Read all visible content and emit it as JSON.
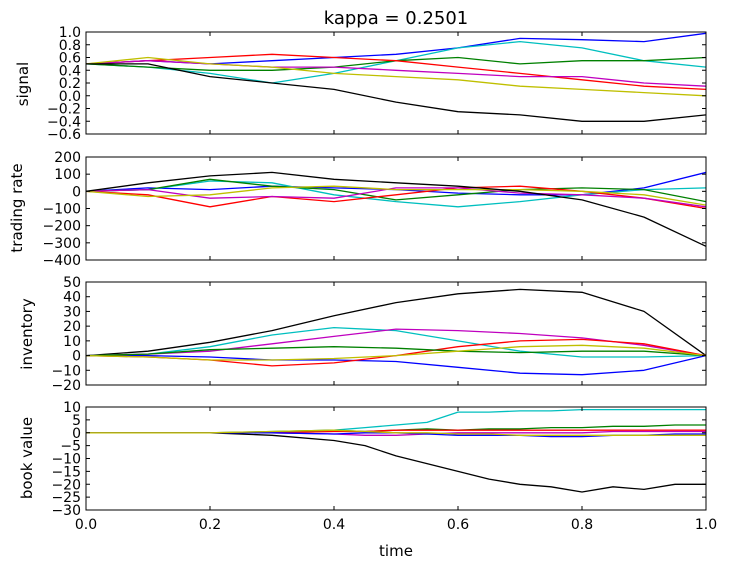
{
  "chart_data": [
    {
      "type": "line",
      "title": "kappa = 0.2501",
      "xlabel": "",
      "ylabel": "signal",
      "xlim": [
        0.0,
        1.0
      ],
      "ylim": [
        -0.6,
        1.0
      ],
      "yticks": [
        "1.0",
        "0.8",
        "0.6",
        "0.4",
        "0.2",
        "0.0",
        "−0.2",
        "−0.4",
        "−0.6"
      ],
      "ytick_values": [
        1.0,
        0.8,
        0.6,
        0.4,
        0.2,
        0.0,
        -0.2,
        -0.4,
        -0.6
      ],
      "grid": false,
      "series": [
        {
          "color": "#0000ff",
          "x": [
            0,
            0.1,
            0.2,
            0.3,
            0.4,
            0.5,
            0.6,
            0.7,
            0.8,
            0.9,
            1.0
          ],
          "y": [
            0.5,
            0.55,
            0.5,
            0.55,
            0.6,
            0.65,
            0.75,
            0.9,
            0.88,
            0.85,
            0.98
          ]
        },
        {
          "color": "#00bfbf",
          "x": [
            0,
            0.1,
            0.2,
            0.3,
            0.4,
            0.5,
            0.6,
            0.7,
            0.8,
            0.9,
            1.0
          ],
          "y": [
            0.5,
            0.45,
            0.35,
            0.2,
            0.35,
            0.55,
            0.75,
            0.85,
            0.75,
            0.55,
            0.45
          ]
        },
        {
          "color": "#008000",
          "x": [
            0,
            0.1,
            0.2,
            0.3,
            0.4,
            0.5,
            0.6,
            0.7,
            0.8,
            0.9,
            1.0
          ],
          "y": [
            0.5,
            0.45,
            0.4,
            0.4,
            0.45,
            0.55,
            0.6,
            0.5,
            0.55,
            0.55,
            0.6
          ]
        },
        {
          "color": "#ff0000",
          "x": [
            0,
            0.1,
            0.2,
            0.3,
            0.4,
            0.5,
            0.6,
            0.7,
            0.8,
            0.9,
            1.0
          ],
          "y": [
            0.5,
            0.55,
            0.6,
            0.65,
            0.6,
            0.55,
            0.45,
            0.35,
            0.25,
            0.15,
            0.1
          ]
        },
        {
          "color": "#bf00bf",
          "x": [
            0,
            0.1,
            0.2,
            0.3,
            0.4,
            0.5,
            0.6,
            0.7,
            0.8,
            0.9,
            1.0
          ],
          "y": [
            0.5,
            0.55,
            0.5,
            0.45,
            0.45,
            0.4,
            0.35,
            0.3,
            0.3,
            0.2,
            0.15
          ]
        },
        {
          "color": "#bfbf00",
          "x": [
            0,
            0.1,
            0.2,
            0.3,
            0.4,
            0.5,
            0.6,
            0.7,
            0.8,
            0.9,
            1.0
          ],
          "y": [
            0.5,
            0.6,
            0.5,
            0.45,
            0.35,
            0.3,
            0.25,
            0.15,
            0.1,
            0.05,
            0.0
          ]
        },
        {
          "color": "#000000",
          "x": [
            0,
            0.1,
            0.2,
            0.3,
            0.4,
            0.5,
            0.6,
            0.7,
            0.8,
            0.9,
            1.0
          ],
          "y": [
            0.5,
            0.5,
            0.3,
            0.2,
            0.1,
            -0.1,
            -0.25,
            -0.3,
            -0.4,
            -0.4,
            -0.3
          ]
        }
      ]
    },
    {
      "type": "line",
      "xlabel": "",
      "ylabel": "trading rate",
      "xlim": [
        0.0,
        1.0
      ],
      "ylim": [
        -400,
        200
      ],
      "yticks": [
        "200",
        "100",
        "0",
        "−100",
        "−200",
        "−300",
        "−400"
      ],
      "ytick_values": [
        200,
        100,
        0,
        -100,
        -200,
        -300,
        -400
      ],
      "grid": false,
      "series": [
        {
          "color": "#0000ff",
          "x": [
            0,
            0.1,
            0.2,
            0.3,
            0.4,
            0.5,
            0.6,
            0.7,
            0.8,
            0.9,
            1.0
          ],
          "y": [
            0,
            20,
            10,
            30,
            20,
            10,
            -10,
            -20,
            -20,
            20,
            110
          ]
        },
        {
          "color": "#00bfbf",
          "x": [
            0,
            0.1,
            0.2,
            0.3,
            0.4,
            0.5,
            0.6,
            0.7,
            0.8,
            0.9,
            1.0
          ],
          "y": [
            0,
            10,
            60,
            50,
            -20,
            -60,
            -90,
            -60,
            -20,
            10,
            20
          ]
        },
        {
          "color": "#008000",
          "x": [
            0,
            0.1,
            0.2,
            0.3,
            0.4,
            0.5,
            0.6,
            0.7,
            0.8,
            0.9,
            1.0
          ],
          "y": [
            0,
            10,
            70,
            30,
            10,
            -50,
            -20,
            10,
            20,
            10,
            -60
          ]
        },
        {
          "color": "#ff0000",
          "x": [
            0,
            0.1,
            0.2,
            0.3,
            0.4,
            0.5,
            0.6,
            0.7,
            0.8,
            0.9,
            1.0
          ],
          "y": [
            0,
            -20,
            -90,
            -30,
            -60,
            -20,
            20,
            30,
            0,
            -40,
            -100
          ]
        },
        {
          "color": "#bf00bf",
          "x": [
            0,
            0.1,
            0.2,
            0.3,
            0.4,
            0.5,
            0.6,
            0.7,
            0.8,
            0.9,
            1.0
          ],
          "y": [
            0,
            10,
            -40,
            -30,
            -40,
            20,
            20,
            -10,
            -20,
            -40,
            -90
          ]
        },
        {
          "color": "#bfbf00",
          "x": [
            0,
            0.1,
            0.2,
            0.3,
            0.4,
            0.5,
            0.6,
            0.7,
            0.8,
            0.9,
            1.0
          ],
          "y": [
            0,
            -30,
            -20,
            20,
            30,
            10,
            10,
            10,
            0,
            -20,
            -80
          ]
        },
        {
          "color": "#000000",
          "x": [
            0,
            0.1,
            0.2,
            0.3,
            0.4,
            0.5,
            0.6,
            0.7,
            0.8,
            0.9,
            1.0
          ],
          "y": [
            0,
            50,
            90,
            110,
            70,
            50,
            30,
            0,
            -50,
            -150,
            -320
          ]
        }
      ]
    },
    {
      "type": "line",
      "xlabel": "",
      "ylabel": "inventory",
      "xlim": [
        0.0,
        1.0
      ],
      "ylim": [
        -20,
        50
      ],
      "yticks": [
        "50",
        "40",
        "30",
        "20",
        "10",
        "0",
        "−10",
        "−20"
      ],
      "ytick_values": [
        50,
        40,
        30,
        20,
        10,
        0,
        -10,
        -20
      ],
      "grid": false,
      "series": [
        {
          "color": "#000000",
          "x": [
            0,
            0.1,
            0.2,
            0.3,
            0.4,
            0.5,
            0.6,
            0.7,
            0.8,
            0.9,
            1.0
          ],
          "y": [
            0,
            3,
            9,
            17,
            27,
            36,
            42,
            45,
            43,
            30,
            0
          ]
        },
        {
          "color": "#00bfbf",
          "x": [
            0,
            0.1,
            0.2,
            0.3,
            0.4,
            0.5,
            0.6,
            0.7,
            0.8,
            0.9,
            1.0
          ],
          "y": [
            0,
            1,
            6,
            14,
            19,
            17,
            10,
            3,
            -1,
            -1,
            0
          ]
        },
        {
          "color": "#bf00bf",
          "x": [
            0,
            0.1,
            0.2,
            0.3,
            0.4,
            0.5,
            0.6,
            0.7,
            0.8,
            0.9,
            1.0
          ],
          "y": [
            0,
            1,
            3,
            8,
            13,
            18,
            17,
            15,
            12,
            7,
            0
          ]
        },
        {
          "color": "#0000ff",
          "x": [
            0,
            0.1,
            0.2,
            0.3,
            0.4,
            0.5,
            0.6,
            0.7,
            0.8,
            0.9,
            1.0
          ],
          "y": [
            0,
            0,
            -1,
            -3,
            -3,
            -4,
            -8,
            -12,
            -13,
            -10,
            0
          ]
        },
        {
          "color": "#ff0000",
          "x": [
            0,
            0.1,
            0.2,
            0.3,
            0.4,
            0.5,
            0.6,
            0.7,
            0.8,
            0.9,
            1.0
          ],
          "y": [
            0,
            -1,
            -3,
            -7,
            -5,
            0,
            6,
            10,
            11,
            8,
            0
          ]
        },
        {
          "color": "#008000",
          "x": [
            0,
            0.1,
            0.2,
            0.3,
            0.4,
            0.5,
            0.6,
            0.7,
            0.8,
            0.9,
            1.0
          ],
          "y": [
            0,
            1,
            4,
            5,
            6,
            5,
            3,
            2,
            3,
            3,
            0
          ]
        },
        {
          "color": "#bfbf00",
          "x": [
            0,
            0.1,
            0.2,
            0.3,
            0.4,
            0.5,
            0.6,
            0.7,
            0.8,
            0.9,
            1.0
          ],
          "y": [
            0,
            -1,
            -3,
            -3,
            -2,
            0,
            3,
            6,
            7,
            5,
            0
          ]
        }
      ]
    },
    {
      "type": "line",
      "xlabel": "time",
      "ylabel": "book value",
      "xlim": [
        0.0,
        1.0
      ],
      "ylim": [
        -30,
        10
      ],
      "yticks": [
        "10",
        "5",
        "0",
        "−5",
        "−10",
        "−15",
        "−20",
        "−25",
        "−30"
      ],
      "ytick_values": [
        10,
        5,
        0,
        -5,
        -10,
        -15,
        -20,
        -25,
        -30
      ],
      "xticks": [
        "0.0",
        "0.2",
        "0.4",
        "0.6",
        "0.8",
        "1.0"
      ],
      "xtick_values": [
        0.0,
        0.2,
        0.4,
        0.6,
        0.8,
        1.0
      ],
      "grid": false,
      "series": [
        {
          "color": "#000000",
          "x": [
            0,
            0.1,
            0.2,
            0.3,
            0.4,
            0.45,
            0.5,
            0.55,
            0.6,
            0.65,
            0.7,
            0.75,
            0.8,
            0.85,
            0.9,
            0.95,
            1.0
          ],
          "y": [
            0,
            0,
            0,
            -1,
            -3,
            -5,
            -9,
            -12,
            -15,
            -18,
            -20,
            -21,
            -23,
            -21,
            -22,
            -20,
            -20
          ]
        },
        {
          "color": "#00bfbf",
          "x": [
            0,
            0.1,
            0.2,
            0.3,
            0.4,
            0.45,
            0.5,
            0.55,
            0.6,
            0.65,
            0.7,
            0.75,
            0.8,
            0.85,
            0.9,
            0.95,
            1.0
          ],
          "y": [
            0,
            0,
            0,
            0,
            1,
            2,
            3,
            4,
            8,
            8,
            8.5,
            8.5,
            9,
            9,
            9,
            9,
            9
          ]
        },
        {
          "color": "#008000",
          "x": [
            0,
            0.1,
            0.2,
            0.3,
            0.4,
            0.45,
            0.5,
            0.55,
            0.6,
            0.65,
            0.7,
            0.75,
            0.8,
            0.85,
            0.9,
            0.95,
            1.0
          ],
          "y": [
            0,
            0,
            0,
            0.5,
            1,
            0.5,
            1,
            1.5,
            1,
            1.5,
            1.5,
            2,
            2,
            2.5,
            2.5,
            3,
            3
          ]
        },
        {
          "color": "#ff0000",
          "x": [
            0,
            0.1,
            0.2,
            0.3,
            0.4,
            0.45,
            0.5,
            0.55,
            0.6,
            0.65,
            0.7,
            0.75,
            0.8,
            0.85,
            0.9,
            0.95,
            1.0
          ],
          "y": [
            0,
            0,
            0,
            0,
            0.5,
            0.5,
            1,
            1,
            1,
            1,
            1,
            1,
            1,
            1,
            1,
            1,
            1
          ]
        },
        {
          "color": "#bf00bf",
          "x": [
            0,
            0.1,
            0.2,
            0.3,
            0.4,
            0.45,
            0.5,
            0.55,
            0.6,
            0.65,
            0.7,
            0.75,
            0.8,
            0.85,
            0.9,
            0.95,
            1.0
          ],
          "y": [
            0,
            0,
            0,
            0,
            -0.5,
            -1,
            -1,
            -0.5,
            0,
            0,
            0,
            0,
            0,
            0.5,
            0.5,
            0.5,
            0.5
          ]
        },
        {
          "color": "#0000ff",
          "x": [
            0,
            0.1,
            0.2,
            0.3,
            0.4,
            0.45,
            0.5,
            0.55,
            0.6,
            0.65,
            0.7,
            0.75,
            0.8,
            0.85,
            0.9,
            0.95,
            1.0
          ],
          "y": [
            0,
            0,
            0,
            0,
            -0.5,
            0,
            0,
            -0.5,
            -1,
            -1,
            -1,
            -1.5,
            -1.5,
            -1,
            -1,
            -0.5,
            -0.5
          ]
        },
        {
          "color": "#bfbf00",
          "x": [
            0,
            0.1,
            0.2,
            0.3,
            0.4,
            0.45,
            0.5,
            0.55,
            0.6,
            0.65,
            0.7,
            0.75,
            0.8,
            0.85,
            0.9,
            0.95,
            1.0
          ],
          "y": [
            0,
            0,
            0,
            0.5,
            1,
            0.5,
            0,
            0,
            -0.5,
            -0.5,
            -1,
            -1,
            -1,
            -1,
            -1,
            -1,
            -1
          ]
        }
      ]
    }
  ]
}
